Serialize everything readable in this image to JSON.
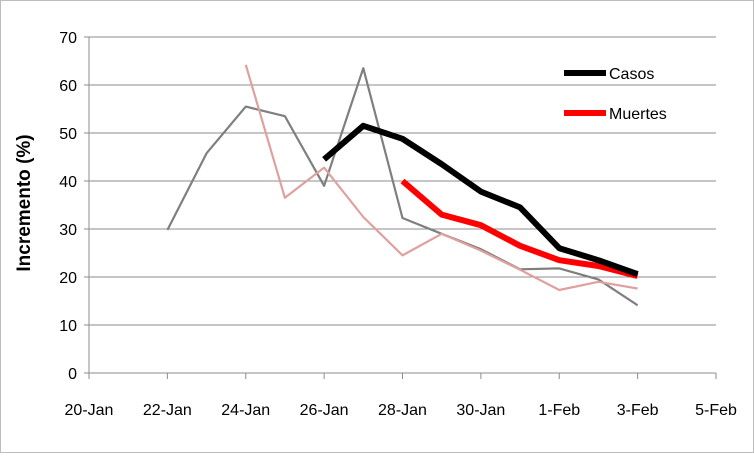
{
  "chart_data": {
    "type": "line",
    "title": "",
    "xlabel": "",
    "ylabel": "Incremento (%)",
    "ylim": [
      0,
      70
    ],
    "yticks": [
      0,
      10,
      20,
      30,
      40,
      50,
      60,
      70
    ],
    "xlim": [
      "2020-01-20",
      "2020-02-05"
    ],
    "xtick_values": [
      "2020-01-20",
      "2020-01-22",
      "2020-01-24",
      "2020-01-26",
      "2020-01-28",
      "2020-01-30",
      "2020-02-01",
      "2020-02-03",
      "2020-02-05"
    ],
    "xtick_labels": [
      "20-Jan",
      "22-Jan",
      "24-Jan",
      "26-Jan",
      "28-Jan",
      "30-Jan",
      "1-Feb",
      "3-Feb",
      "5-Feb"
    ],
    "grid": "horizontal",
    "legend": "top-right",
    "series": [
      {
        "name": "Casos",
        "color": "#000000",
        "x": [
          "2020-01-26",
          "2020-01-27",
          "2020-01-28",
          "2020-01-29",
          "2020-01-30",
          "2020-01-31",
          "2020-02-01",
          "2020-02-02",
          "2020-02-03"
        ],
        "y": [
          44.5,
          51.5,
          48.8,
          43.5,
          37.8,
          34.5,
          26.0,
          23.5,
          20.6
        ]
      },
      {
        "name": "Muertes",
        "color": "#ff0000",
        "x": [
          "2020-01-28",
          "2020-01-29",
          "2020-01-30",
          "2020-01-31",
          "2020-02-01",
          "2020-02-02",
          "2020-02-03"
        ],
        "y": [
          40.0,
          33.0,
          30.8,
          26.5,
          23.5,
          22.3,
          20.2
        ]
      },
      {
        "name": "",
        "color": "#7f7f7f",
        "x": [
          "2020-01-22",
          "2020-01-23",
          "2020-01-24",
          "2020-01-25",
          "2020-01-26",
          "2020-01-27",
          "2020-01-28",
          "2020-01-29",
          "2020-01-30",
          "2020-01-31",
          "2020-02-01",
          "2020-02-02",
          "2020-02-03"
        ],
        "y": [
          29.8,
          45.8,
          55.5,
          53.5,
          39.0,
          63.5,
          32.3,
          29.0,
          25.8,
          21.6,
          21.8,
          19.5,
          14.1
        ]
      },
      {
        "name": "",
        "color": "#e0a0a0",
        "x": [
          "2020-01-24",
          "2020-01-25",
          "2020-01-26",
          "2020-01-27",
          "2020-01-28",
          "2020-01-29",
          "2020-01-30",
          "2020-01-31",
          "2020-02-01",
          "2020-02-02",
          "2020-02-03"
        ],
        "y": [
          64.2,
          36.5,
          42.8,
          32.5,
          24.5,
          29.0,
          25.5,
          21.5,
          17.3,
          19.0,
          17.6
        ]
      }
    ]
  }
}
